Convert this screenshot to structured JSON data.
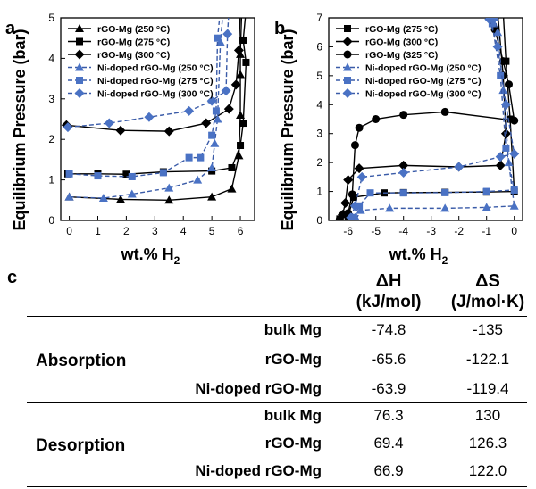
{
  "panel_labels": {
    "a": "a",
    "b": "b",
    "c": "c"
  },
  "ylabel": "Equilibrium Pressure (bar)",
  "xlabel_main": "wt.% H",
  "xlabel_sub": "2",
  "colors": {
    "black": "#000000",
    "blue": "#3a5ba8",
    "blue_marker": "#4a72c4"
  },
  "chart_data": [
    {
      "type": "line",
      "panel": "a",
      "xlim": [
        -0.3,
        6.5
      ],
      "ylim": [
        0,
        5
      ],
      "xticks": [
        0,
        1,
        2,
        3,
        4,
        5,
        6
      ],
      "yticks": [
        0,
        1,
        2,
        3,
        4,
        5
      ],
      "legend_position": "top-left",
      "series": [
        {
          "name": "rGO-Mg (250 °C)",
          "marker": "triangle",
          "color": "#000000",
          "dash": false,
          "points": [
            [
              0.0,
              0.58
            ],
            [
              1.8,
              0.52
            ],
            [
              3.5,
              0.5
            ],
            [
              5.0,
              0.58
            ],
            [
              5.7,
              0.78
            ],
            [
              5.95,
              1.6
            ],
            [
              6.0,
              2.6
            ],
            [
              6.0,
              3.6
            ],
            [
              6.0,
              4.1
            ],
            [
              6.05,
              5.2
            ]
          ]
        },
        {
          "name": "rGO-Mg (275 °C)",
          "marker": "square",
          "color": "#000000",
          "dash": false,
          "points": [
            [
              -0.05,
              1.15
            ],
            [
              1.0,
              1.15
            ],
            [
              2.0,
              1.14
            ],
            [
              3.3,
              1.2
            ],
            [
              5.0,
              1.22
            ],
            [
              5.7,
              1.3
            ],
            [
              6.0,
              1.85
            ],
            [
              6.1,
              2.4
            ],
            [
              6.2,
              3.9
            ],
            [
              6.1,
              4.45
            ],
            [
              6.2,
              5.2
            ]
          ]
        },
        {
          "name": "rGO-Mg (300 °C)",
          "marker": "diamond",
          "color": "#000000",
          "dash": false,
          "points": [
            [
              -0.1,
              2.35
            ],
            [
              1.8,
              2.22
            ],
            [
              3.5,
              2.2
            ],
            [
              4.8,
              2.4
            ],
            [
              5.6,
              2.75
            ],
            [
              5.85,
              3.35
            ],
            [
              5.95,
              4.2
            ],
            [
              6.0,
              5.2
            ]
          ]
        },
        {
          "name": "Ni-doped rGO-Mg (250 °C)",
          "marker": "triangle",
          "color": "#3a5ba8",
          "dash": true,
          "points": [
            [
              0.0,
              0.58
            ],
            [
              1.2,
              0.55
            ],
            [
              2.2,
              0.65
            ],
            [
              3.5,
              0.8
            ],
            [
              4.5,
              1.0
            ],
            [
              5.0,
              1.3
            ],
            [
              5.1,
              1.9
            ],
            [
              5.2,
              2.5
            ],
            [
              5.3,
              4.4
            ],
            [
              5.4,
              5.2
            ]
          ]
        },
        {
          "name": "Ni-doped rGO-Mg (275 °C)",
          "marker": "square",
          "color": "#3a5ba8",
          "dash": true,
          "points": [
            [
              0.0,
              1.15
            ],
            [
              1.0,
              1.1
            ],
            [
              2.2,
              1.08
            ],
            [
              3.3,
              1.18
            ],
            [
              4.2,
              1.55
            ],
            [
              4.6,
              1.55
            ],
            [
              5.0,
              2.1
            ],
            [
              5.15,
              2.7
            ],
            [
              5.2,
              4.5
            ],
            [
              5.3,
              5.2
            ]
          ]
        },
        {
          "name": "Ni-doped rGO-Mg (300 °C)",
          "marker": "diamond",
          "color": "#3a5ba8",
          "dash": true,
          "points": [
            [
              -0.05,
              2.3
            ],
            [
              1.4,
              2.4
            ],
            [
              2.8,
              2.55
            ],
            [
              4.2,
              2.7
            ],
            [
              5.0,
              2.95
            ],
            [
              5.5,
              3.2
            ],
            [
              5.55,
              4.6
            ],
            [
              5.6,
              5.2
            ]
          ]
        }
      ]
    },
    {
      "type": "line",
      "panel": "b",
      "xlim": [
        -6.7,
        0.3
      ],
      "ylim": [
        0,
        7
      ],
      "xticks": [
        -6,
        -5,
        -4,
        -3,
        -2,
        -1,
        0
      ],
      "yticks": [
        0,
        1,
        2,
        3,
        4,
        5,
        6,
        7
      ],
      "legend_position": "top-left",
      "series": [
        {
          "name": "rGO-Mg (275 °C)",
          "marker": "square",
          "color": "#000000",
          "dash": false,
          "points": [
            [
              -6.3,
              0.05
            ],
            [
              -6.0,
              0.15
            ],
            [
              -5.8,
              0.8
            ],
            [
              -4.7,
              0.95
            ],
            [
              -4.0,
              0.96
            ],
            [
              -2.5,
              0.97
            ],
            [
              -1.0,
              0.98
            ],
            [
              0.0,
              1.0
            ],
            [
              -0.15,
              3.5
            ],
            [
              -0.3,
              5.5
            ],
            [
              -0.4,
              7.2
            ]
          ]
        },
        {
          "name": "rGO-Mg (300 °C)",
          "marker": "diamond",
          "color": "#000000",
          "dash": false,
          "points": [
            [
              -6.2,
              0.2
            ],
            [
              -6.1,
              0.6
            ],
            [
              -6.0,
              1.4
            ],
            [
              -5.6,
              1.8
            ],
            [
              -4.0,
              1.9
            ],
            [
              -2.0,
              1.85
            ],
            [
              -0.5,
              1.9
            ],
            [
              -0.3,
              3.0
            ],
            [
              -0.4,
              5.0
            ],
            [
              -0.6,
              7.2
            ]
          ]
        },
        {
          "name": "rGO-Mg (325 °C)",
          "marker": "circle",
          "color": "#000000",
          "dash": false,
          "points": [
            [
              -6.3,
              0.05
            ],
            [
              -6.0,
              0.25
            ],
            [
              -5.85,
              0.9
            ],
            [
              -5.75,
              2.6
            ],
            [
              -5.6,
              3.2
            ],
            [
              -5.0,
              3.5
            ],
            [
              -4.0,
              3.65
            ],
            [
              -2.5,
              3.75
            ],
            [
              0.0,
              3.45
            ],
            [
              -0.2,
              4.7
            ],
            [
              -0.4,
              5.5
            ],
            [
              -0.7,
              6.6
            ],
            [
              -0.8,
              7.2
            ]
          ]
        },
        {
          "name": "Ni-doped rGO-Mg (250 °C)",
          "marker": "triangle",
          "color": "#3a5ba8",
          "dash": true,
          "points": [
            [
              -5.7,
              0.05
            ],
            [
              -5.55,
              0.35
            ],
            [
              -4.5,
              0.42
            ],
            [
              -2.5,
              0.42
            ],
            [
              -1.0,
              0.45
            ],
            [
              0.0,
              0.5
            ],
            [
              -0.2,
              2.0
            ],
            [
              -0.4,
              4.5
            ],
            [
              -0.6,
              6.5
            ],
            [
              -0.7,
              7.0
            ]
          ]
        },
        {
          "name": "Ni-doped rGO-Mg (275 °C)",
          "marker": "square",
          "color": "#3a5ba8",
          "dash": true,
          "points": [
            [
              -5.8,
              0.1
            ],
            [
              -5.6,
              0.5
            ],
            [
              -5.2,
              0.95
            ],
            [
              -4.0,
              0.95
            ],
            [
              -2.5,
              0.96
            ],
            [
              -1.0,
              1.0
            ],
            [
              0.0,
              1.05
            ],
            [
              -0.3,
              2.5
            ],
            [
              -0.5,
              5.0
            ],
            [
              -0.8,
              6.8
            ],
            [
              -0.9,
              7.1
            ]
          ]
        },
        {
          "name": "Ni-doped rGO-Mg (300 °C)",
          "marker": "diamond",
          "color": "#3a5ba8",
          "dash": true,
          "points": [
            [
              -5.9,
              0.1
            ],
            [
              -5.75,
              0.5
            ],
            [
              -5.5,
              1.5
            ],
            [
              -4.0,
              1.65
            ],
            [
              -2.0,
              1.85
            ],
            [
              -0.5,
              2.2
            ],
            [
              0.0,
              2.3
            ],
            [
              -0.3,
              4.0
            ],
            [
              -0.6,
              6.0
            ],
            [
              -0.9,
              6.95
            ]
          ]
        }
      ]
    },
    {
      "type": "table",
      "panel": "c",
      "columns": [
        "",
        "",
        "ΔH (kJ/mol)",
        "ΔS (J/mol·K)"
      ],
      "header": {
        "dh_line1": "ΔH",
        "dh_line2": "(kJ/mol)",
        "ds_line1": "ΔS",
        "ds_line2": "(J/mol·K)"
      },
      "groups": [
        {
          "name": "Absorption",
          "rows": [
            {
              "sample": "bulk Mg",
              "dH": "-74.8",
              "dS": "-135"
            },
            {
              "sample": "rGO-Mg",
              "dH": "-65.6",
              "dS": "-122.1"
            },
            {
              "sample": "Ni-doped rGO-Mg",
              "dH": "-63.9",
              "dS": "-119.4"
            }
          ]
        },
        {
          "name": "Desorption",
          "rows": [
            {
              "sample": "bulk Mg",
              "dH": "76.3",
              "dS": "130"
            },
            {
              "sample": "rGO-Mg",
              "dH": "69.4",
              "dS": "126.3"
            },
            {
              "sample": "Ni-doped rGO-Mg",
              "dH": "66.9",
              "dS": "122.0"
            }
          ]
        }
      ]
    }
  ]
}
